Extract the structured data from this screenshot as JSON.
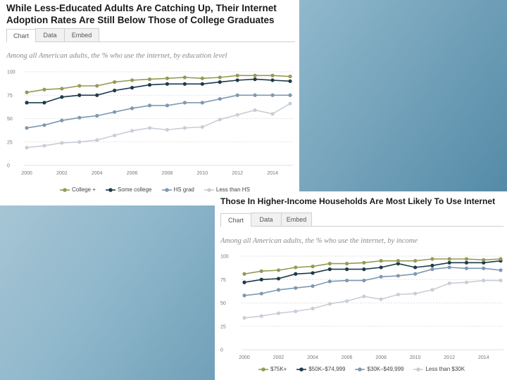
{
  "chart_data": [
    {
      "type": "line",
      "title": "While Less-Educated Adults Are Catching Up, Their Internet Adoption Rates Are Still Below Those of College Graduates",
      "subtitle": "Among all American adults, the % who use the internet, by education level",
      "tabs": [
        "Chart",
        "Data",
        "Embed"
      ],
      "x": [
        2000,
        2001,
        2002,
        2003,
        2004,
        2005,
        2006,
        2007,
        2008,
        2009,
        2010,
        2011,
        2012,
        2013,
        2014,
        2015
      ],
      "xticks": [
        "2000",
        "2002",
        "2004",
        "2006",
        "2008",
        "2010",
        "2012",
        "2014"
      ],
      "yticks": [
        "0",
        "25",
        "50",
        "75",
        "100"
      ],
      "ylim": [
        0,
        100
      ],
      "xlim": [
        2000,
        2015
      ],
      "series": [
        {
          "name": "College +",
          "color": "#949a55",
          "values": [
            78,
            81,
            82,
            85,
            85,
            89,
            91,
            92,
            93,
            94,
            93,
            94,
            96,
            96,
            96,
            95
          ]
        },
        {
          "name": "Some college",
          "color": "#1c3a4a",
          "values": [
            67,
            67,
            73,
            75,
            75,
            80,
            83,
            86,
            87,
            87,
            87,
            89,
            91,
            92,
            91,
            90
          ]
        },
        {
          "name": "HS grad",
          "color": "#7e98b0",
          "values": [
            40,
            43,
            48,
            51,
            53,
            57,
            61,
            64,
            64,
            67,
            67,
            71,
            75,
            75,
            75,
            75
          ]
        },
        {
          "name": "Less than HS",
          "color": "#c8ced6",
          "values": [
            19,
            21,
            24,
            25,
            27,
            32,
            37,
            40,
            38,
            40,
            41,
            49,
            54,
            59,
            55,
            66
          ]
        }
      ]
    },
    {
      "type": "line",
      "title": "Those In Higher-Income Households Are Most Likely To Use Internet",
      "subtitle": "Among all American adults, the % who use the internet, by income",
      "tabs": [
        "Chart",
        "Data",
        "Embed"
      ],
      "x": [
        2000,
        2001,
        2002,
        2003,
        2004,
        2005,
        2006,
        2007,
        2008,
        2009,
        2010,
        2011,
        2012,
        2013,
        2014,
        2015
      ],
      "xticks": [
        "2000",
        "2002",
        "2004",
        "2006",
        "2008",
        "2010",
        "2012",
        "2014"
      ],
      "yticks": [
        "0",
        "25",
        "50",
        "75",
        "100"
      ],
      "ylim": [
        0,
        100
      ],
      "xlim": [
        2000,
        2015
      ],
      "series": [
        {
          "name": "$75K+",
          "color": "#949a55",
          "values": [
            81,
            84,
            85,
            88,
            89,
            92,
            92,
            93,
            95,
            95,
            95,
            97,
            97,
            97,
            96,
            97
          ]
        },
        {
          "name": "$50K–$74,999",
          "color": "#1c3a4a",
          "values": [
            72,
            75,
            76,
            81,
            82,
            86,
            86,
            86,
            88,
            92,
            88,
            90,
            93,
            93,
            93,
            95
          ]
        },
        {
          "name": "$30K–$49,999",
          "color": "#7e98b0",
          "values": [
            58,
            60,
            64,
            66,
            68,
            73,
            74,
            74,
            78,
            79,
            81,
            86,
            88,
            87,
            87,
            85
          ]
        },
        {
          "name": "Less than $30K",
          "color": "#c8ced6",
          "values": [
            34,
            36,
            39,
            41,
            44,
            49,
            52,
            57,
            54,
            59,
            60,
            64,
            71,
            72,
            74,
            74
          ]
        }
      ]
    }
  ]
}
